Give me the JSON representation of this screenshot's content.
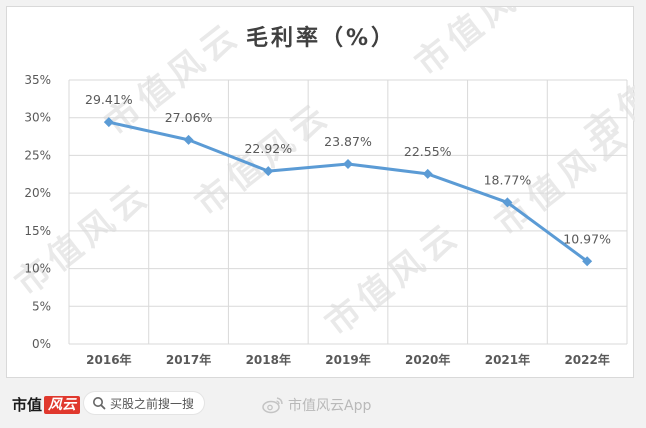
{
  "chart_data": {
    "type": "line",
    "title": "毛利率（%）",
    "categories": [
      "2016年",
      "2017年",
      "2018年",
      "2019年",
      "2020年",
      "2021年",
      "2022年"
    ],
    "series": [
      {
        "values": [
          29.41,
          27.06,
          22.92,
          23.87,
          22.55,
          18.77,
          10.97
        ],
        "labels": [
          "29.41%",
          "27.06%",
          "22.92%",
          "23.87%",
          "22.55%",
          "18.77%",
          "10.97%"
        ],
        "color": "#5b9bd5"
      }
    ],
    "ylim": [
      0,
      35
    ],
    "yticks": [
      "0%",
      "5%",
      "10%",
      "15%",
      "20%",
      "25%",
      "30%",
      "35%"
    ],
    "grid": true,
    "legend": "none"
  },
  "watermark": "市值风云",
  "footer": {
    "brand": "市值",
    "brand_highlight": "风云",
    "search_text": "买股之前搜一搜",
    "weibo_text": "市值风云App"
  },
  "colors": {
    "line": "#5b9bd5",
    "grid": "#d9d9d9",
    "brand_red": "#e0382d"
  }
}
